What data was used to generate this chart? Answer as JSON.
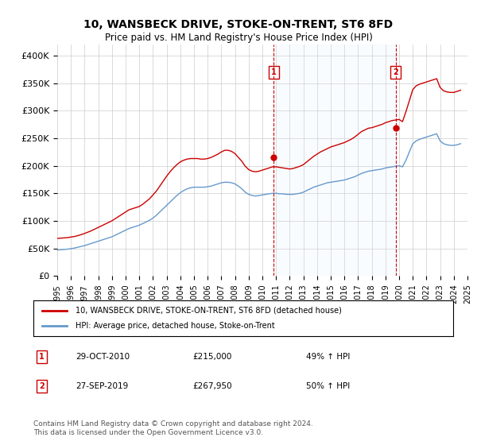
{
  "title": "10, WANSBECK DRIVE, STOKE-ON-TRENT, ST6 8FD",
  "subtitle": "Price paid vs. HM Land Registry's House Price Index (HPI)",
  "legend_line1": "10, WANSBECK DRIVE, STOKE-ON-TRENT, ST6 8FD (detached house)",
  "legend_line2": "HPI: Average price, detached house, Stoke-on-Trent",
  "annotation1_label": "1",
  "annotation1_date": "29-OCT-2010",
  "annotation1_price": "£215,000",
  "annotation1_hpi": "49% ↑ HPI",
  "annotation2_label": "2",
  "annotation2_date": "27-SEP-2019",
  "annotation2_price": "£267,950",
  "annotation2_hpi": "50% ↑ HPI",
  "footer": "Contains HM Land Registry data © Crown copyright and database right 2024.\nThis data is licensed under the Open Government Licence v3.0.",
  "red_color": "#cc0000",
  "blue_color": "#6699cc",
  "annotation_vline_color": "#cc0000",
  "annotation_box_color": "#cc0000",
  "highlight_fill": "#ddeeff",
  "background_color": "#ffffff",
  "grid_color": "#cccccc",
  "ylim": [
    0,
    420000
  ],
  "yticks": [
    0,
    50000,
    100000,
    150000,
    200000,
    250000,
    300000,
    350000,
    400000
  ],
  "ytick_labels": [
    "£0",
    "£50K",
    "£100K",
    "£150K",
    "£200K",
    "£250K",
    "£300K",
    "£350K",
    "£400K"
  ],
  "sale1_x": 2010.83,
  "sale1_y": 215000,
  "sale2_x": 2019.75,
  "sale2_y": 267950,
  "hpi_x": [
    1995,
    1995.25,
    1995.5,
    1995.75,
    1996,
    1996.25,
    1996.5,
    1996.75,
    1997,
    1997.25,
    1997.5,
    1997.75,
    1998,
    1998.25,
    1998.5,
    1998.75,
    1999,
    1999.25,
    1999.5,
    1999.75,
    2000,
    2000.25,
    2000.5,
    2000.75,
    2001,
    2001.25,
    2001.5,
    2001.75,
    2002,
    2002.25,
    2002.5,
    2002.75,
    2003,
    2003.25,
    2003.5,
    2003.75,
    2004,
    2004.25,
    2004.5,
    2004.75,
    2005,
    2005.25,
    2005.5,
    2005.75,
    2006,
    2006.25,
    2006.5,
    2006.75,
    2007,
    2007.25,
    2007.5,
    2007.75,
    2008,
    2008.25,
    2008.5,
    2008.75,
    2009,
    2009.25,
    2009.5,
    2009.75,
    2010,
    2010.25,
    2010.5,
    2010.75,
    2011,
    2011.25,
    2011.5,
    2011.75,
    2012,
    2012.25,
    2012.5,
    2012.75,
    2013,
    2013.25,
    2013.5,
    2013.75,
    2014,
    2014.25,
    2014.5,
    2014.75,
    2015,
    2015.25,
    2015.5,
    2015.75,
    2016,
    2016.25,
    2016.5,
    2016.75,
    2017,
    2017.25,
    2017.5,
    2017.75,
    2018,
    2018.25,
    2018.5,
    2018.75,
    2019,
    2019.25,
    2019.5,
    2019.75,
    2020,
    2020.25,
    2020.5,
    2020.75,
    2021,
    2021.25,
    2021.5,
    2021.75,
    2022,
    2022.25,
    2022.5,
    2022.75,
    2023,
    2023.25,
    2023.5,
    2023.75,
    2024,
    2024.25,
    2024.5
  ],
  "hpi_y": [
    47000,
    47500,
    48000,
    48500,
    49500,
    50500,
    52000,
    53500,
    55000,
    57000,
    59000,
    61000,
    63000,
    65000,
    67000,
    69000,
    71000,
    74000,
    77000,
    80000,
    83000,
    86000,
    88000,
    90000,
    92000,
    95000,
    98000,
    101000,
    105000,
    110000,
    116000,
    122000,
    128000,
    134000,
    140000,
    146000,
    151000,
    155000,
    158000,
    160000,
    161000,
    161000,
    161000,
    161000,
    162000,
    163000,
    165000,
    167000,
    169000,
    170000,
    170000,
    169000,
    167000,
    163000,
    158000,
    152000,
    148000,
    146000,
    145000,
    146000,
    147000,
    148000,
    149000,
    150000,
    150000,
    149000,
    149000,
    148000,
    148000,
    148000,
    149000,
    150000,
    152000,
    155000,
    158000,
    161000,
    163000,
    165000,
    167000,
    169000,
    170000,
    171000,
    172000,
    173000,
    174000,
    176000,
    178000,
    180000,
    183000,
    186000,
    188000,
    190000,
    191000,
    192000,
    193000,
    194000,
    196000,
    197000,
    198000,
    199000,
    200000,
    198000,
    210000,
    225000,
    240000,
    245000,
    248000,
    250000,
    252000,
    254000,
    256000,
    258000,
    245000,
    240000,
    238000,
    237000,
    237000,
    238000,
    240000
  ],
  "red_x": [
    1995,
    1995.25,
    1995.5,
    1995.75,
    1996,
    1996.25,
    1996.5,
    1996.75,
    1997,
    1997.25,
    1997.5,
    1997.75,
    1998,
    1998.25,
    1998.5,
    1998.75,
    1999,
    1999.25,
    1999.5,
    1999.75,
    2000,
    2000.25,
    2000.5,
    2000.75,
    2001,
    2001.25,
    2001.5,
    2001.75,
    2002,
    2002.25,
    2002.5,
    2002.75,
    2003,
    2003.25,
    2003.5,
    2003.75,
    2004,
    2004.25,
    2004.5,
    2004.75,
    2005,
    2005.25,
    2005.5,
    2005.75,
    2006,
    2006.25,
    2006.5,
    2006.75,
    2007,
    2007.25,
    2007.5,
    2007.75,
    2008,
    2008.25,
    2008.5,
    2008.75,
    2009,
    2009.25,
    2009.5,
    2009.75,
    2010,
    2010.25,
    2010.5,
    2010.75,
    2011,
    2011.25,
    2011.5,
    2011.75,
    2012,
    2012.25,
    2012.5,
    2012.75,
    2013,
    2013.25,
    2013.5,
    2013.75,
    2014,
    2014.25,
    2014.5,
    2014.75,
    2015,
    2015.25,
    2015.5,
    2015.75,
    2016,
    2016.25,
    2016.5,
    2016.75,
    2017,
    2017.25,
    2017.5,
    2017.75,
    2018,
    2018.25,
    2018.5,
    2018.75,
    2019,
    2019.25,
    2019.5,
    2019.75,
    2020,
    2020.25,
    2020.5,
    2020.75,
    2021,
    2021.25,
    2021.5,
    2021.75,
    2022,
    2022.25,
    2022.5,
    2022.75,
    2023,
    2023.25,
    2023.5,
    2023.75,
    2024,
    2024.25,
    2024.5
  ],
  "red_y": [
    68000,
    68500,
    69000,
    69500,
    70500,
    71500,
    73000,
    75000,
    77000,
    79500,
    82000,
    85000,
    88000,
    91000,
    94000,
    97000,
    100000,
    104000,
    108000,
    112000,
    116000,
    120000,
    122000,
    124000,
    126000,
    130000,
    135000,
    140000,
    147000,
    154000,
    163000,
    172000,
    181000,
    189000,
    196000,
    202000,
    207000,
    210000,
    212000,
    213000,
    213000,
    213000,
    212000,
    212000,
    213000,
    215000,
    218000,
    221000,
    225000,
    228000,
    228000,
    226000,
    222000,
    215000,
    208000,
    199000,
    193000,
    190000,
    189000,
    190000,
    192000,
    194000,
    196000,
    198000,
    198000,
    197000,
    196000,
    195000,
    194000,
    195000,
    197000,
    199000,
    202000,
    207000,
    212000,
    217000,
    221000,
    225000,
    228000,
    231000,
    234000,
    236000,
    238000,
    240000,
    242000,
    245000,
    248000,
    252000,
    257000,
    262000,
    265000,
    268000,
    269000,
    271000,
    273000,
    275000,
    278000,
    280000,
    282000,
    283000,
    284000,
    280000,
    298000,
    318000,
    338000,
    345000,
    348000,
    350000,
    352000,
    354000,
    356000,
    358000,
    342000,
    336000,
    334000,
    333000,
    333000,
    335000,
    337000
  ],
  "xtick_years": [
    1995,
    1996,
    1997,
    1998,
    1999,
    2000,
    2001,
    2002,
    2003,
    2004,
    2005,
    2006,
    2007,
    2008,
    2009,
    2010,
    2011,
    2012,
    2013,
    2014,
    2015,
    2016,
    2017,
    2018,
    2019,
    2020,
    2021,
    2022,
    2023,
    2024,
    2025
  ]
}
